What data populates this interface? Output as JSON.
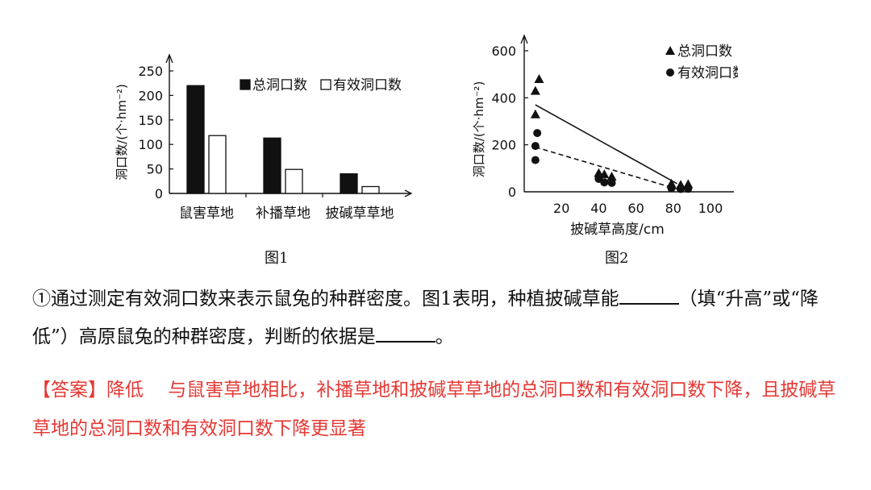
{
  "chart_data": [
    {
      "type": "bar",
      "title": "",
      "caption": "图1",
      "ylabel": "洞口数/(个·hm⁻²)",
      "xlabel": "",
      "ylim": [
        0,
        250
      ],
      "yticks": [
        0,
        50,
        100,
        150,
        200,
        250
      ],
      "categories": [
        "鼠害草地",
        "补播草地",
        "披碱草草地"
      ],
      "series": [
        {
          "name": "总洞口数",
          "values": [
            220,
            113,
            40
          ],
          "color": "#111111"
        },
        {
          "name": "有效洞口数",
          "values": [
            118,
            49,
            14
          ],
          "color": "#ffffff"
        }
      ],
      "legend_position": "top-right"
    },
    {
      "type": "scatter",
      "title": "",
      "caption": "图2",
      "ylabel": "洞口数/(个·hm⁻²)",
      "xlabel": "披碱草高度/cm",
      "xlim": [
        0,
        100
      ],
      "ylim": [
        0,
        600
      ],
      "xticks": [
        20,
        40,
        60,
        80,
        100
      ],
      "yticks": [
        0,
        200,
        400,
        600
      ],
      "series": [
        {
          "name": "总洞口数",
          "marker": "triangle",
          "points": [
            [
              6,
              430
            ],
            [
              8,
              480
            ],
            [
              6,
              330
            ],
            [
              40,
              80
            ],
            [
              43,
              75
            ],
            [
              47,
              65
            ],
            [
              79,
              35
            ],
            [
              84,
              30
            ],
            [
              88,
              33
            ]
          ],
          "trend": [
            [
              6,
              370
            ],
            [
              82,
              35
            ]
          ],
          "trend_style": "solid"
        },
        {
          "name": "有效洞口数",
          "marker": "circle",
          "points": [
            [
              6,
              195
            ],
            [
              7,
              250
            ],
            [
              6,
              135
            ],
            [
              40,
              55
            ],
            [
              43,
              40
            ],
            [
              47,
              38
            ],
            [
              79,
              15
            ],
            [
              84,
              12
            ],
            [
              88,
              13
            ]
          ],
          "trend": [
            [
              6,
              190
            ],
            [
              82,
              12
            ]
          ],
          "trend_style": "dashed"
        }
      ],
      "legend_position": "top-right"
    }
  ],
  "question": {
    "part1": "①通过测定有效洞口数来表示鼠兔的种群密度。图1表明，种植披碱草能",
    "part2": "（填“升高”或“降低”）高原鼠兔的种群密度，判断的依据是",
    "part3": "。"
  },
  "answer": {
    "label": "【答案】",
    "text": "降低　 与鼠害草地相比，补播草地和披碱草草地的总洞口数和有效洞口数下降，且披碱草草地的总洞口数和有效洞口数下降更显著"
  }
}
